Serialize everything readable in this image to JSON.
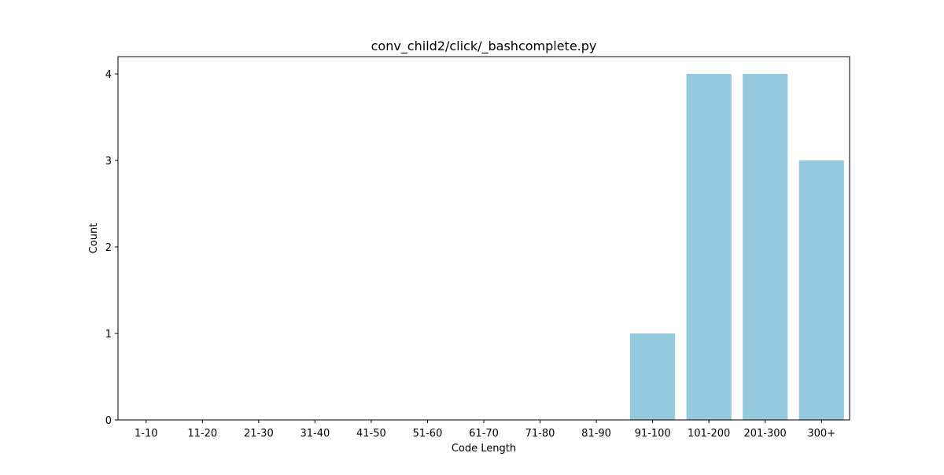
{
  "chart_data": {
    "type": "bar",
    "title": "conv_child2/click/_bashcomplete.py",
    "xlabel": "Code Length",
    "ylabel": "Count",
    "categories": [
      "1-10",
      "11-20",
      "21-30",
      "31-40",
      "41-50",
      "51-60",
      "61-70",
      "71-80",
      "81-90",
      "91-100",
      "101-200",
      "201-300",
      "300+"
    ],
    "values": [
      0,
      0,
      0,
      0,
      0,
      0,
      0,
      0,
      0,
      1,
      4,
      4,
      3
    ],
    "yticks": [
      0,
      1,
      2,
      3,
      4
    ],
    "ylim": [
      0,
      4.2
    ],
    "grid": false,
    "bar_color": "#95c9dd"
  }
}
